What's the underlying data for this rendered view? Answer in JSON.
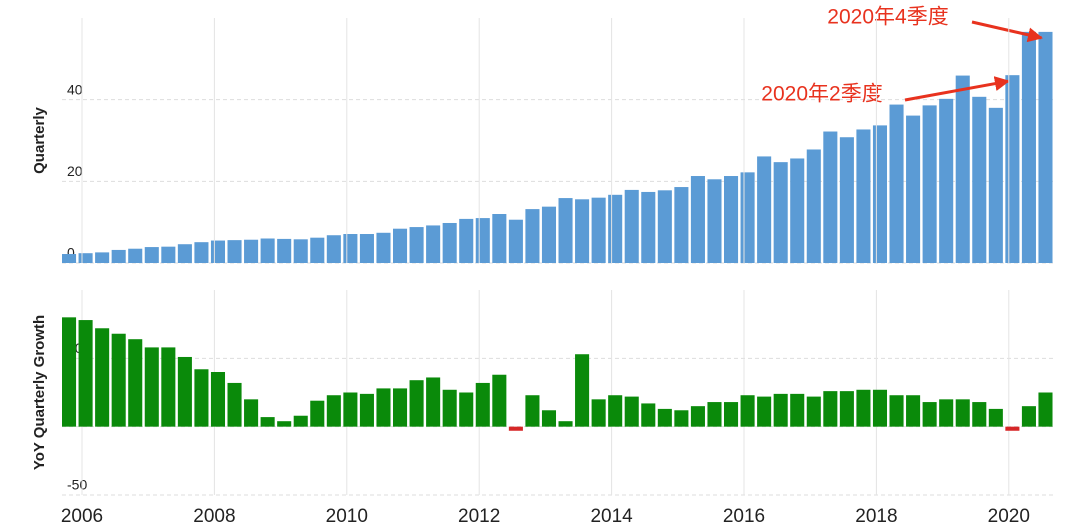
{
  "chart_data": [
    {
      "type": "bar",
      "y_label": "Quarterly",
      "color": "#5b9bd5",
      "x": [
        2006,
        2006.25,
        2006.5,
        2006.75,
        2007,
        2007.25,
        2007.5,
        2007.75,
        2008,
        2008.25,
        2008.5,
        2008.75,
        2009,
        2009.25,
        2009.5,
        2009.75,
        2010,
        2010.25,
        2010.5,
        2010.75,
        2011,
        2011.25,
        2011.5,
        2011.75,
        2012,
        2012.25,
        2012.5,
        2012.75,
        2013,
        2013.25,
        2013.5,
        2013.75,
        2014,
        2014.25,
        2014.5,
        2014.75,
        2015,
        2015.25,
        2015.5,
        2015.75,
        2016,
        2016.25,
        2016.5,
        2016.75,
        2017,
        2017.25,
        2017.5,
        2017.75,
        2018,
        2018.25,
        2018.5,
        2018.75,
        2019,
        2019.25,
        2019.5,
        2019.75,
        2020,
        2020.25,
        2020.5,
        2020.75
      ],
      "values": [
        2.2,
        2.4,
        2.6,
        3.2,
        3.5,
        3.9,
        4.0,
        4.6,
        5.1,
        5.5,
        5.6,
        5.7,
        6.0,
        5.9,
        5.8,
        6.2,
        6.8,
        7.1,
        7.1,
        7.4,
        8.4,
        8.8,
        9.2,
        9.8,
        10.8,
        11.0,
        12.0,
        10.6,
        13.2,
        13.8,
        15.9,
        15.6,
        16.0,
        16.7,
        17.9,
        17.4,
        17.8,
        18.6,
        21.3,
        20.5,
        21.3,
        22.2,
        26.1,
        24.7,
        25.6,
        27.8,
        32.2,
        30.8,
        32.7,
        33.7,
        38.8,
        36.1,
        38.6,
        40.2,
        45.9,
        40.7,
        38.0,
        46.0,
        56.6,
        56.6
      ],
      "xlim": [
        2006,
        2021
      ],
      "ylim": [
        0,
        60
      ],
      "yticks": [
        0,
        20,
        40
      ],
      "grid": true,
      "annotations": [
        {
          "text": "2020年4季度",
          "x": 2020.75
        },
        {
          "text": "2020年2季度",
          "x": 2020.25
        }
      ]
    },
    {
      "type": "bar",
      "y_label": "YoY Quarterly Growth",
      "color": "#0a8a0a",
      "negative_color": "#d62728",
      "x": [
        2006,
        2006.25,
        2006.5,
        2006.75,
        2007,
        2007.25,
        2007.5,
        2007.75,
        2008,
        2008.25,
        2008.5,
        2008.75,
        2009,
        2009.25,
        2009.5,
        2009.75,
        2010,
        2010.25,
        2010.5,
        2010.75,
        2011,
        2011.25,
        2011.5,
        2011.75,
        2012,
        2012.25,
        2012.5,
        2012.75,
        2013,
        2013.25,
        2013.5,
        2013.75,
        2014,
        2014.25,
        2014.5,
        2014.75,
        2015,
        2015.25,
        2015.5,
        2015.75,
        2016,
        2016.25,
        2016.5,
        2016.75,
        2017,
        2017.25,
        2017.5,
        2017.75,
        2018,
        2018.25,
        2018.5,
        2018.75,
        2019,
        2019.25,
        2019.5,
        2019.75,
        2020,
        2020.25,
        2020.5,
        2020.75
      ],
      "values": [
        80,
        78,
        72,
        68,
        64,
        58,
        58,
        51,
        42,
        40,
        32,
        20,
        7,
        4,
        8,
        19,
        23,
        25,
        24,
        28,
        28,
        34,
        36,
        27,
        25,
        32,
        38,
        -3,
        23,
        12,
        4,
        53,
        20,
        23,
        22,
        17,
        13,
        12,
        15,
        18,
        18,
        23,
        22,
        24,
        24,
        22,
        26,
        26,
        27,
        27,
        23,
        23,
        18,
        20,
        20,
        18,
        13,
        -3,
        15,
        25
      ],
      "xlim": [
        2006,
        2021
      ],
      "ylim": [
        -50,
        100
      ],
      "yticks": [
        -50,
        0,
        50
      ],
      "grid": true,
      "xticks": [
        2006,
        2008,
        2010,
        2012,
        2014,
        2016,
        2018,
        2020
      ]
    }
  ]
}
